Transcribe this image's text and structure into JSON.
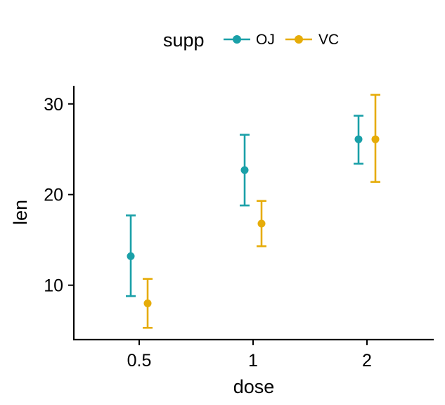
{
  "chart_data": {
    "type": "scatter",
    "title": "",
    "xlabel": "dose",
    "ylabel": "len",
    "x_categories": [
      "0.5",
      "1",
      "2"
    ],
    "ylim": [
      4,
      32
    ],
    "y_ticks": [
      10,
      20,
      30
    ],
    "grid": false,
    "legend": {
      "title": "supp",
      "position": "top"
    },
    "series": [
      {
        "name": "OJ",
        "color": "#1AA0A8",
        "points": [
          {
            "x": "0.5",
            "y": 13.2,
            "ymin": 8.8,
            "ymax": 17.7
          },
          {
            "x": "1",
            "y": 22.7,
            "ymin": 18.8,
            "ymax": 26.6
          },
          {
            "x": "2",
            "y": 26.1,
            "ymin": 23.4,
            "ymax": 28.7
          }
        ]
      },
      {
        "name": "VC",
        "color": "#E6AC08",
        "points": [
          {
            "x": "0.5",
            "y": 8.0,
            "ymin": 5.3,
            "ymax": 10.7
          },
          {
            "x": "1",
            "y": 16.8,
            "ymin": 14.3,
            "ymax": 19.3
          },
          {
            "x": "2",
            "y": 26.1,
            "ymin": 21.4,
            "ymax": 31.0
          }
        ]
      }
    ]
  }
}
